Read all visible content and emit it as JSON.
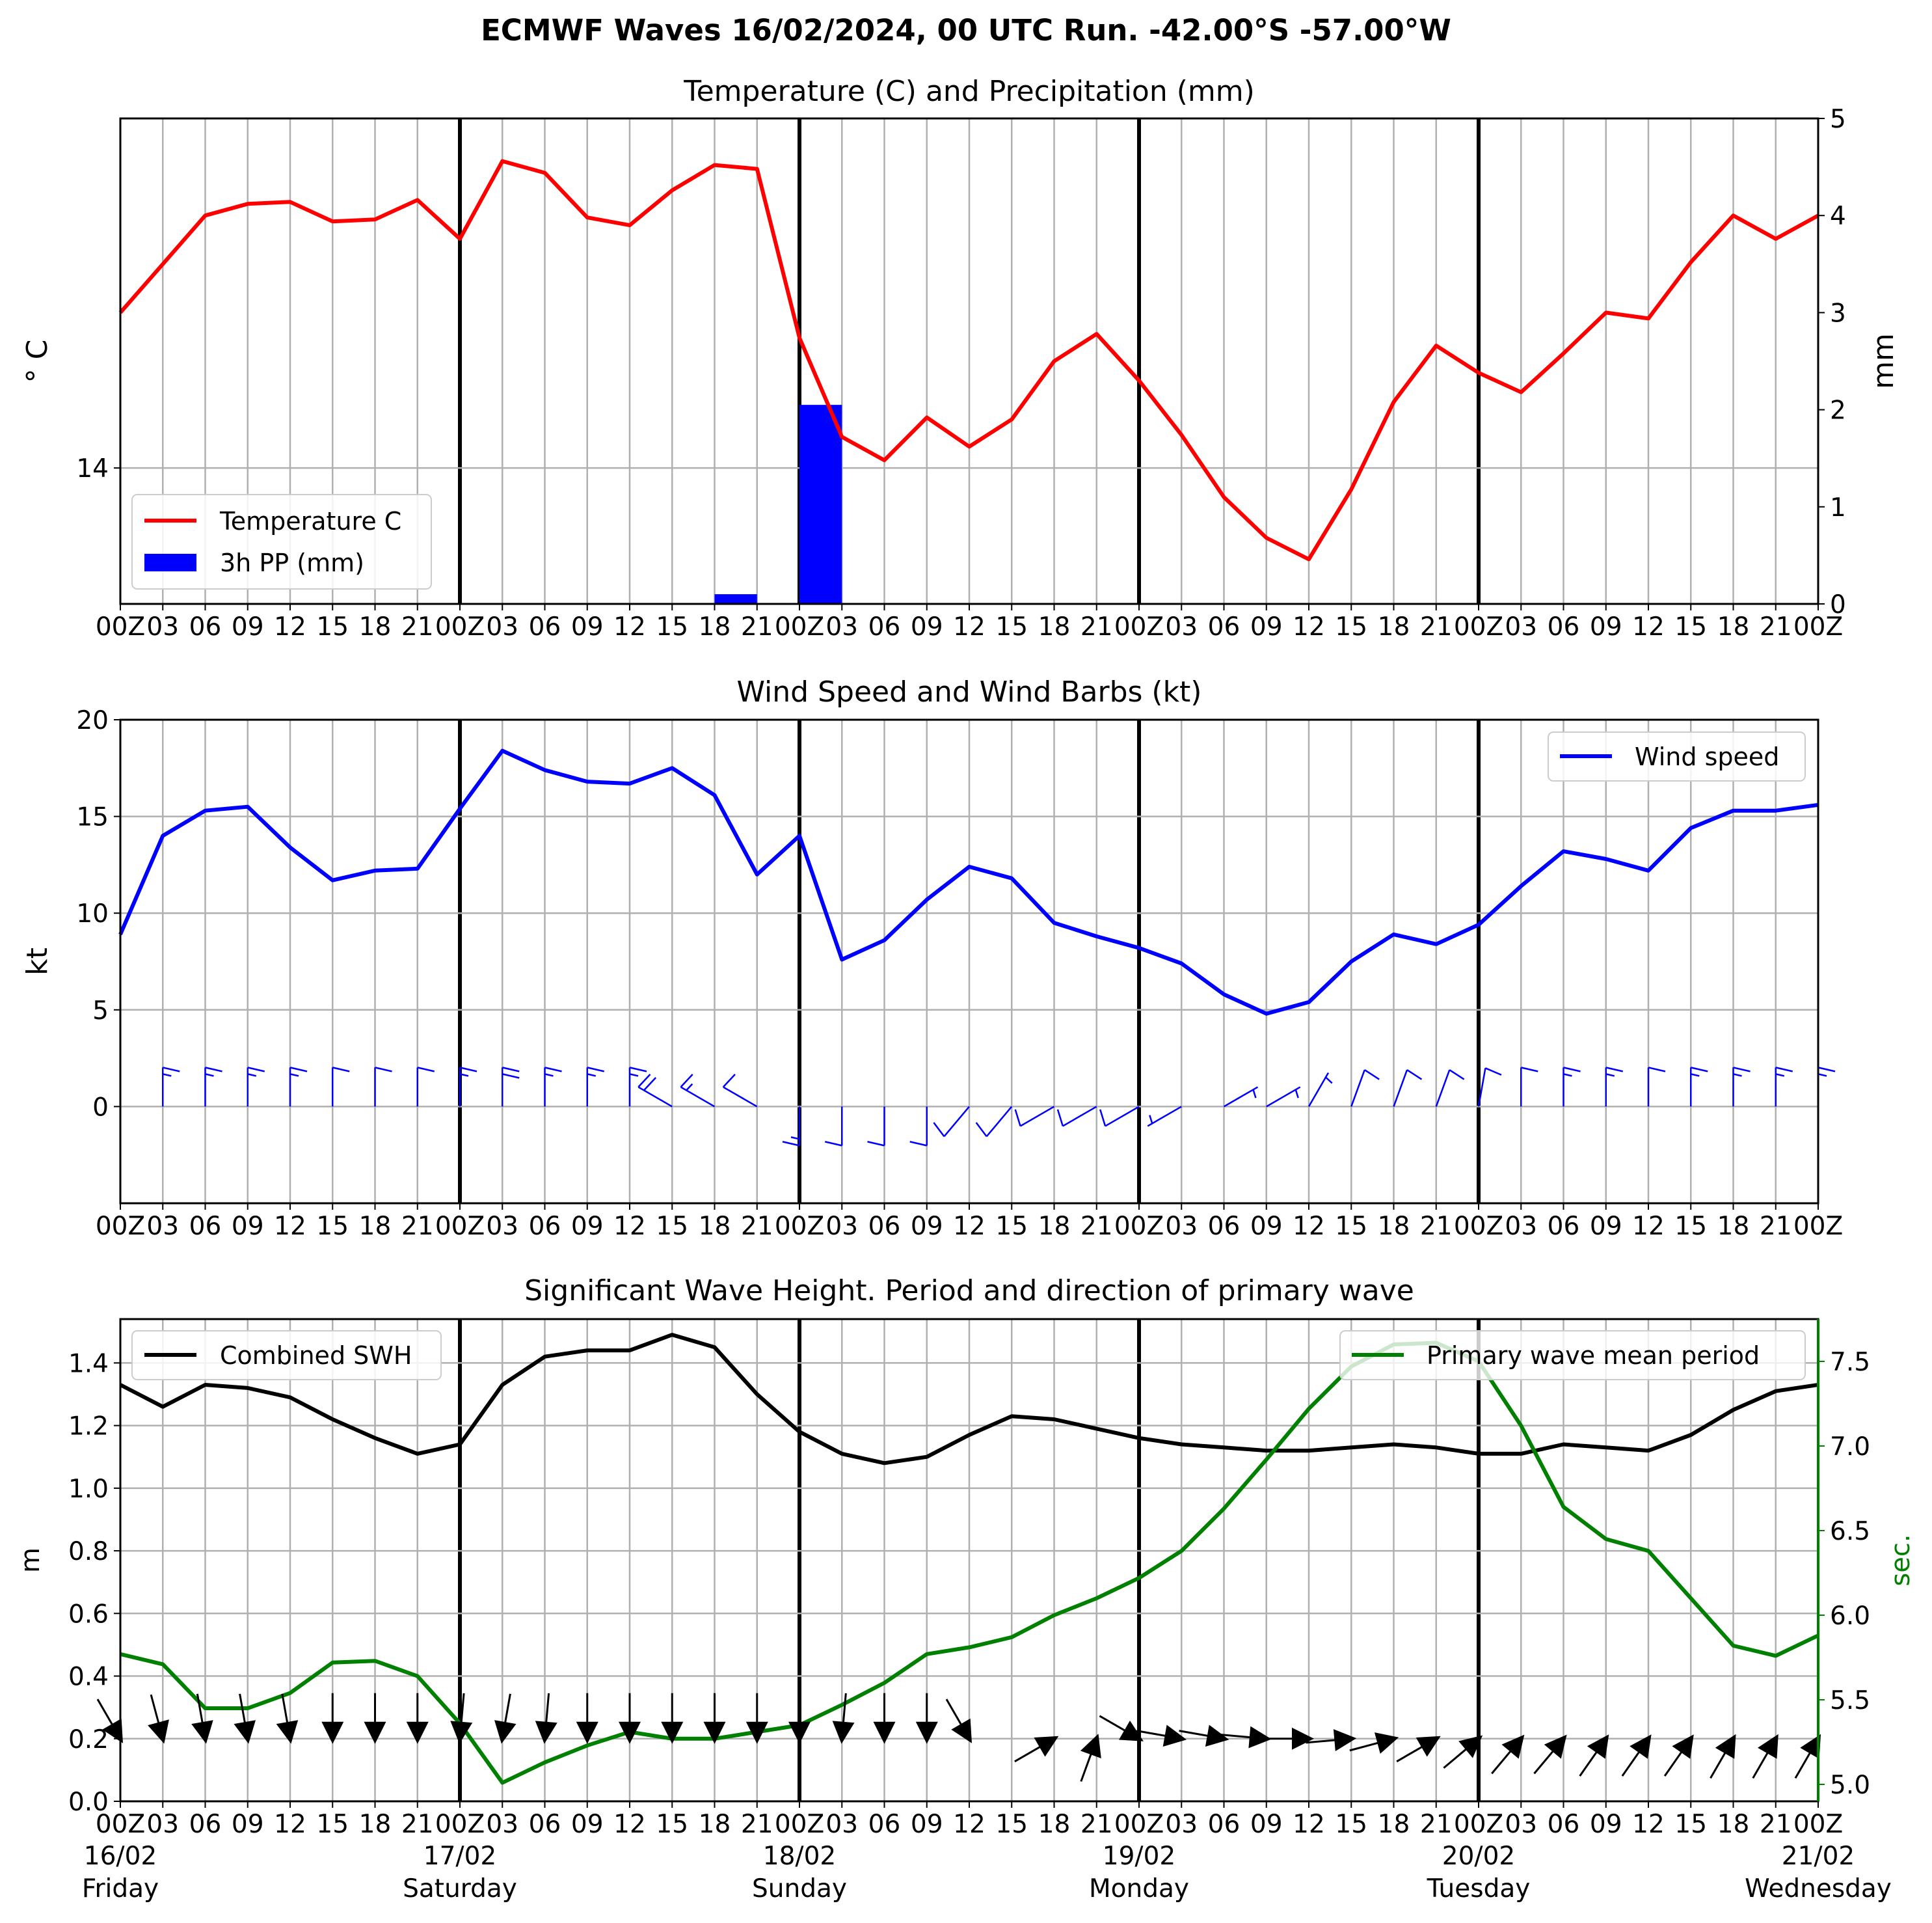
{
  "suptitle": "ECMWF Waves 16/02/2024, 00 UTC Run. -42.00°S -57.00°W",
  "time_tick_labels": [
    "00Z",
    "03",
    "06",
    "09",
    "12",
    "15",
    "18",
    "21",
    "00Z",
    "03",
    "06",
    "09",
    "12",
    "15",
    "18",
    "21",
    "00Z",
    "03",
    "06",
    "09",
    "12",
    "15",
    "18",
    "21",
    "00Z",
    "03",
    "06",
    "09",
    "12",
    "15",
    "18",
    "21",
    "00Z",
    "03",
    "06",
    "09",
    "12",
    "15",
    "18",
    "21",
    "00Z"
  ],
  "day_labels": [
    {
      "date": "16/02",
      "day": "Friday"
    },
    {
      "date": "17/02",
      "day": "Saturday"
    },
    {
      "date": "18/02",
      "day": "Sunday"
    },
    {
      "date": "19/02",
      "day": "Monday"
    },
    {
      "date": "20/02",
      "day": "Tuesday"
    },
    {
      "date": "21/02",
      "day": "Wednesday"
    }
  ],
  "colors": {
    "temperature": "#ff0000",
    "precip": "#0000ff",
    "wind": "#0000ff",
    "swh": "#000000",
    "period": "#008000",
    "grid": "#b0b0b0"
  },
  "chart_data": [
    {
      "id": "temperature_precip",
      "type": "line",
      "title": "Temperature (C) and Precipitation (mm)",
      "x": [
        "16/02 00Z",
        "16/02 03",
        "16/02 06",
        "16/02 09",
        "16/02 12",
        "16/02 15",
        "16/02 18",
        "16/02 21",
        "17/02 00Z",
        "17/02 03",
        "17/02 06",
        "17/02 09",
        "17/02 12",
        "17/02 15",
        "17/02 18",
        "17/02 21",
        "18/02 00Z",
        "18/02 03",
        "18/02 06",
        "18/02 09",
        "18/02 12",
        "18/02 15",
        "18/02 18",
        "18/02 21",
        "19/02 00Z",
        "19/02 03",
        "19/02 06",
        "19/02 09",
        "19/02 12",
        "19/02 15",
        "19/02 18",
        "19/02 21",
        "20/02 00Z",
        "20/02 03",
        "20/02 06",
        "20/02 09",
        "20/02 12",
        "20/02 15",
        "20/02 18",
        "20/02 21",
        "21/02 00Z"
      ],
      "ylabel": "° C",
      "y_ticks": [
        "14"
      ],
      "ylim": [
        13.3,
        15.8
      ],
      "y2label": "mm",
      "y2_ticks": [
        "0",
        "1",
        "2",
        "3",
        "4",
        "5"
      ],
      "y2lim": [
        0,
        5
      ],
      "legend": "lower-left",
      "grid": true,
      "series": [
        {
          "name": "Temperature C",
          "type": "line",
          "axis": "left",
          "color": "#ff0000",
          "values": [
            14.8,
            15.05,
            15.3,
            15.36,
            15.37,
            15.27,
            15.28,
            15.38,
            15.18,
            15.58,
            15.52,
            15.29,
            15.25,
            15.43,
            15.56,
            15.54,
            14.67,
            14.16,
            14.04,
            14.26,
            14.11,
            14.25,
            14.55,
            14.69,
            14.45,
            14.17,
            13.85,
            13.64,
            13.53,
            13.89,
            14.34,
            14.63,
            14.49,
            14.39,
            14.59,
            14.8,
            14.77,
            15.06,
            15.3,
            15.18,
            15.3
          ]
        },
        {
          "name": "3h PP (mm)",
          "type": "bar",
          "axis": "right",
          "color": "#0000ff",
          "values": [
            0,
            0,
            0,
            0,
            0,
            0,
            0,
            0,
            0,
            0,
            0,
            0,
            0,
            0,
            0,
            0.1,
            0.01,
            2.05,
            0,
            0,
            0,
            0,
            0,
            0,
            0,
            0,
            0,
            0,
            0,
            0,
            0,
            0,
            0,
            0,
            0,
            0,
            0,
            0,
            0,
            0,
            0
          ]
        }
      ]
    },
    {
      "id": "wind",
      "type": "line",
      "title": "Wind Speed and Wind Barbs (kt)",
      "ylabel": "kt",
      "y_ticks": [
        "0",
        "5",
        "10",
        "15",
        "20"
      ],
      "ylim": [
        -5,
        20
      ],
      "legend": "upper-right",
      "grid": true,
      "series": [
        {
          "name": "Wind speed",
          "color": "#0000ff",
          "values": [
            8.9,
            14.0,
            15.3,
            15.5,
            13.4,
            11.7,
            12.2,
            12.3,
            15.4,
            18.4,
            17.4,
            16.8,
            16.7,
            17.5,
            16.1,
            12.0,
            14.0,
            7.6,
            8.6,
            10.7,
            12.4,
            11.8,
            9.5,
            8.8,
            8.2,
            7.4,
            5.8,
            4.8,
            5.4,
            7.5,
            8.9,
            8.4,
            9.4,
            11.4,
            13.2,
            12.8,
            12.2,
            14.4,
            15.3,
            15.3,
            15.6
          ]
        }
      ],
      "barbs": {
        "speed_kt": [
          8.9,
          14.0,
          15.3,
          15.5,
          13.4,
          11.7,
          12.2,
          12.3,
          15.4,
          18.4,
          17.4,
          16.8,
          16.7,
          17.5,
          16.1,
          12.0,
          14.0,
          7.6,
          8.6,
          10.7,
          12.4,
          11.8,
          9.5,
          8.8,
          8.2,
          7.4,
          5.8,
          4.8,
          5.4,
          7.5,
          8.9,
          8.4,
          9.4,
          11.4,
          13.2,
          12.8,
          12.2,
          14.4,
          15.3,
          15.3,
          15.6
        ],
        "from_direction_deg": [
          0,
          0,
          0,
          0,
          0,
          0,
          0,
          0,
          0,
          0,
          0,
          0,
          0,
          300,
          300,
          300,
          180,
          180,
          180,
          180,
          220,
          220,
          240,
          240,
          240,
          240,
          60,
          60,
          30,
          20,
          20,
          20,
          10,
          0,
          0,
          0,
          0,
          0,
          0,
          0,
          0
        ]
      }
    },
    {
      "id": "waves",
      "type": "line",
      "title": "Significant Wave Height. Period and direction of primary wave",
      "ylabel": "m",
      "y_ticks": [
        "0.0",
        "0.2",
        "0.4",
        "0.6",
        "0.8",
        "1.0",
        "1.2",
        "1.4"
      ],
      "ylim": [
        0,
        1.54
      ],
      "y2label": "sec.",
      "y2_ticks": [
        "5.0",
        "5.5",
        "6.0",
        "6.5",
        "7.0",
        "7.5"
      ],
      "y2lim": [
        4.9,
        7.75
      ],
      "grid": true,
      "series": [
        {
          "name": "Combined SWH",
          "axis": "left",
          "color": "#000000",
          "legend": "upper-left",
          "values": [
            1.33,
            1.26,
            1.33,
            1.32,
            1.29,
            1.22,
            1.16,
            1.11,
            1.14,
            1.33,
            1.42,
            1.44,
            1.44,
            1.49,
            1.45,
            1.3,
            1.18,
            1.11,
            1.08,
            1.1,
            1.17,
            1.23,
            1.22,
            1.19,
            1.16,
            1.14,
            1.13,
            1.12,
            1.12,
            1.13,
            1.14,
            1.13,
            1.11,
            1.11,
            1.14,
            1.13,
            1.12,
            1.17,
            1.25,
            1.31,
            1.33
          ]
        },
        {
          "name": "Primary wave mean period",
          "axis": "right",
          "color": "#008000",
          "legend": "upper-right",
          "values": [
            5.77,
            5.71,
            5.45,
            5.45,
            5.54,
            5.72,
            5.73,
            5.64,
            5.36,
            5.01,
            5.13,
            5.23,
            5.31,
            5.27,
            5.27,
            5.31,
            5.35,
            5.47,
            5.6,
            5.77,
            5.81,
            5.87,
            6.0,
            6.1,
            6.22,
            6.38,
            6.63,
            6.92,
            7.22,
            7.47,
            7.6,
            7.61,
            7.5,
            7.12,
            6.64,
            6.45,
            6.38,
            6.1,
            5.82,
            5.76,
            5.88
          ]
        }
      ],
      "direction_arrows": {
        "from_direction_deg": [
          330,
          345,
          350,
          350,
          350,
          0,
          0,
          0,
          5,
          10,
          5,
          0,
          0,
          0,
          0,
          0,
          0,
          5,
          0,
          0,
          330,
          null,
          240,
          200,
          300,
          280,
          280,
          275,
          270,
          265,
          255,
          240,
          230,
          220,
          220,
          215,
          215,
          215,
          210,
          210,
          210
        ]
      }
    }
  ]
}
